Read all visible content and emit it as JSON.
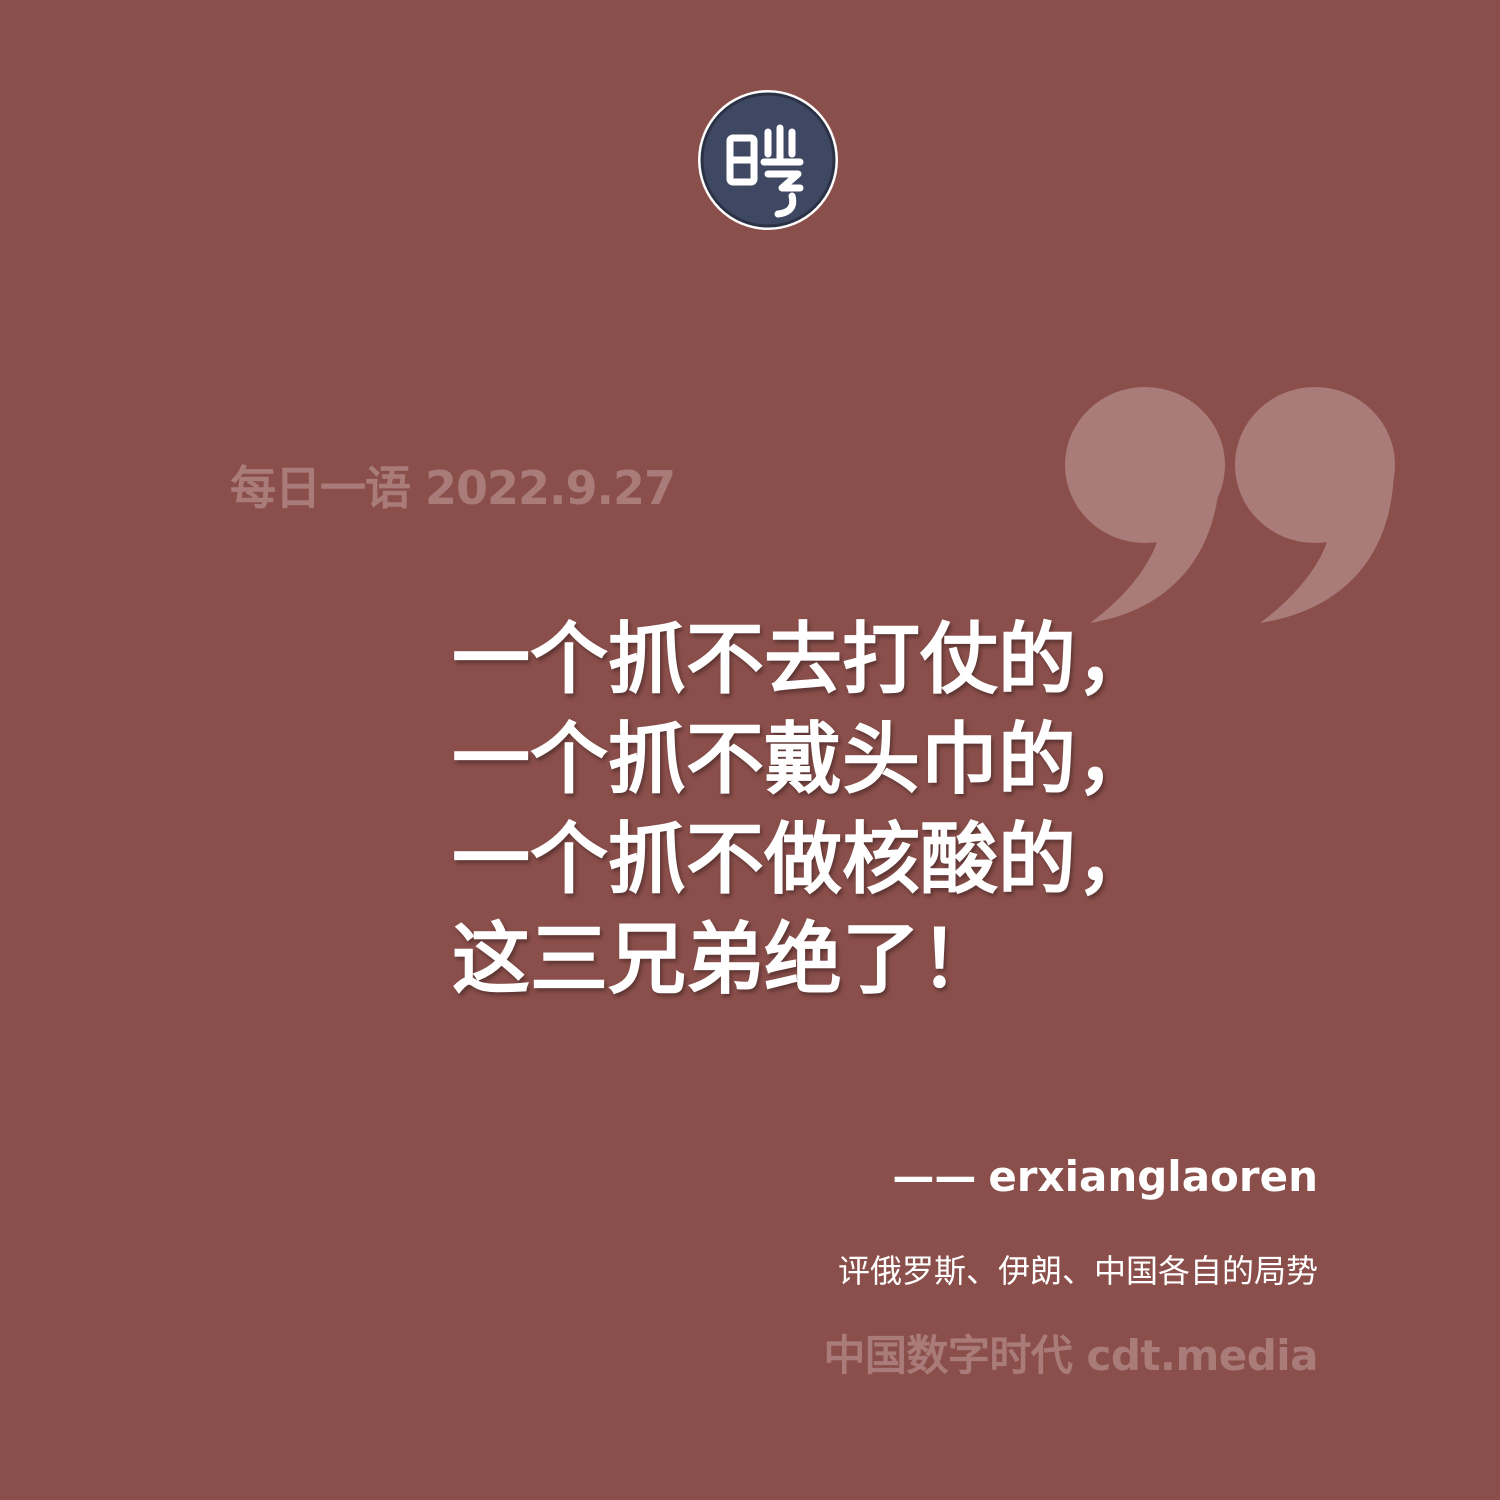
{
  "logo": {
    "icon": "cdt-seal-logo-icon",
    "glyph": "曉",
    "colors": {
      "fill": "#3f4862",
      "ring": "#ffffff",
      "glyph": "#ffffff"
    }
  },
  "header": {
    "label": "每日一语",
    "date": "2022.9.27"
  },
  "decoration": {
    "icon": "closing-quote-icon",
    "color": "#a97c79"
  },
  "quote": {
    "lines": [
      "一个抓不去打仗的，",
      "一个抓不戴头巾的，",
      "一个抓不做核酸的，",
      "这三兄弟绝了！"
    ]
  },
  "attribution": {
    "dash": "——",
    "author": "erxianglaoren",
    "source": "评俄罗斯、伊朗、中国各自的局势"
  },
  "footer": {
    "brand": "中国数字时代",
    "site": "cdt.media"
  },
  "colors": {
    "background": "#8b4f4b",
    "muted_text": "#a97c79",
    "main_text": "#ffffff"
  }
}
